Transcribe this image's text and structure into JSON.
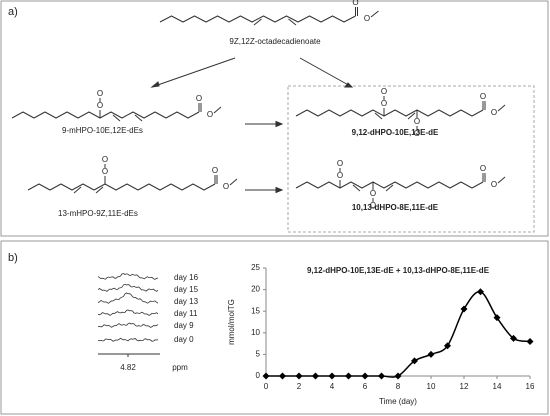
{
  "panel_a": {
    "label": "a)",
    "atom_label": "O",
    "compounds": {
      "substrate": "9Z,12Z-octadecadienoate",
      "mono_9": "9-mHPO-10E,12E-dEs",
      "mono_13": "13-mHPO-9Z,11E-dEs",
      "di_9_12": "9,12-dHPO-10E,13E-dE",
      "di_10_13": "10,13-dHPO-8E,11E-dE"
    }
  },
  "panel_b": {
    "label": "b)",
    "spectra": {
      "labels": [
        "day 16",
        "day 15",
        "day 13",
        "day 11",
        "day 9",
        "day 0"
      ],
      "shift": "4.82",
      "unit": "ppm"
    }
  },
  "chart_data": {
    "type": "line",
    "title": "9,12-dHPO-10E,13E-dE + 10,13-dHPO-8E,11E-dE",
    "x_label": "Time (day)",
    "y_label": "mmol/molTG",
    "x": [
      0,
      1,
      2,
      3,
      4,
      5,
      6,
      7,
      8,
      9,
      10,
      11,
      12,
      13,
      14,
      15,
      16
    ],
    "series": [
      {
        "name": "dHPO",
        "color": "#000000",
        "values": [
          0,
          0,
          0,
          0,
          0,
          0,
          0,
          0,
          0,
          3.5,
          5,
          7,
          15.5,
          19.5,
          13.5,
          8.7,
          8
        ]
      }
    ],
    "xlim": [
      0,
      16
    ],
    "xticks": [
      0,
      2,
      4,
      6,
      8,
      10,
      12,
      14,
      16
    ],
    "ylim": [
      0,
      25
    ],
    "yticks": [
      0,
      5,
      10,
      15,
      20,
      25
    ]
  }
}
